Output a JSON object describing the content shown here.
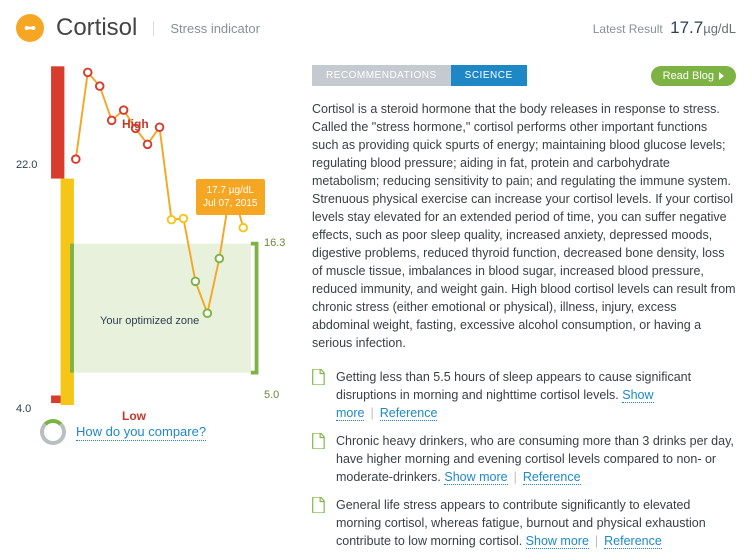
{
  "header": {
    "title": "Cortisol",
    "subtitle": "Stress indicator",
    "latest_label": "Latest Result",
    "latest_value": "17.7",
    "latest_unit": "µg/dL"
  },
  "chart": {
    "axis_max": "22.0",
    "axis_min": "4.0",
    "opt_top": "16.3",
    "opt_bot": "5.0",
    "high_label": "High",
    "low_label": "Low",
    "zone_label": "Your optimized zone",
    "tooltip_value": "17.7 µg/dL",
    "tooltip_date": "Jul 07, 2015",
    "y_domain": [
      3,
      32
    ],
    "red_band": [
      22,
      32
    ],
    "yellow_band": [
      2,
      22
    ],
    "green_band": [
      5,
      16.3
    ],
    "points": [
      23.7,
      31.3,
      30.1,
      27.1,
      28.0,
      26.4,
      25.0,
      26.5,
      18.4,
      18.5,
      13,
      10.2,
      15,
      21.5,
      17.7
    ],
    "colors": {
      "red": "#d73c2c",
      "yellow": "#f5c518",
      "green": "#7cb342",
      "opt_fill": "#e8f1dc",
      "line": "#f5a623",
      "tooltip": "#f5a623"
    }
  },
  "compare_link": "How do you compare?",
  "tabs": {
    "recommendations": "RECOMMENDATIONS",
    "science": "SCIENCE"
  },
  "read_blog": "Read Blog",
  "description": "Cortisol is a steroid hormone that the body releases in response to stress. Called the \"stress hormone,\" cortisol performs other important functions such as providing quick spurts of energy; maintaining blood glucose levels; regulating blood pressure; aiding in fat, protein and carbohydrate metabolism; reducing sensitivity to pain; and regulating the immune system. Strenuous physical exercise can increase your cortisol levels. If your cortisol levels stay elevated for an extended period of time, you can suffer negative effects, such as poor sleep quality, increased anxiety, depressed moods, digestive problems, reduced thyroid function, decreased bone density, loss of muscle tissue, imbalances in blood sugar, increased blood pressure, reduced immunity, and weight gain. High blood cortisol levels can result from chronic stress (either emotional or physical), illness, injury, excess abdominal weight, fasting, excessive alcohol consumption, or having a serious infection.",
  "facts": [
    {
      "text": "Getting less than 5.5 hours of sleep appears to cause significant disruptions in morning and nighttime cortisol levels. "
    },
    {
      "text": "Chronic heavy drinkers, who are consuming more than 3 drinks per day, have higher morning and evening cortisol levels compared to non- or moderate-drinkers. "
    },
    {
      "text": "General life stress appears to contribute significantly to elevated morning cortisol, whereas fatigue, burnout and physical exhaustion contribute to low morning cortisol. "
    }
  ],
  "link_more": "Show more",
  "link_ref": "Reference"
}
